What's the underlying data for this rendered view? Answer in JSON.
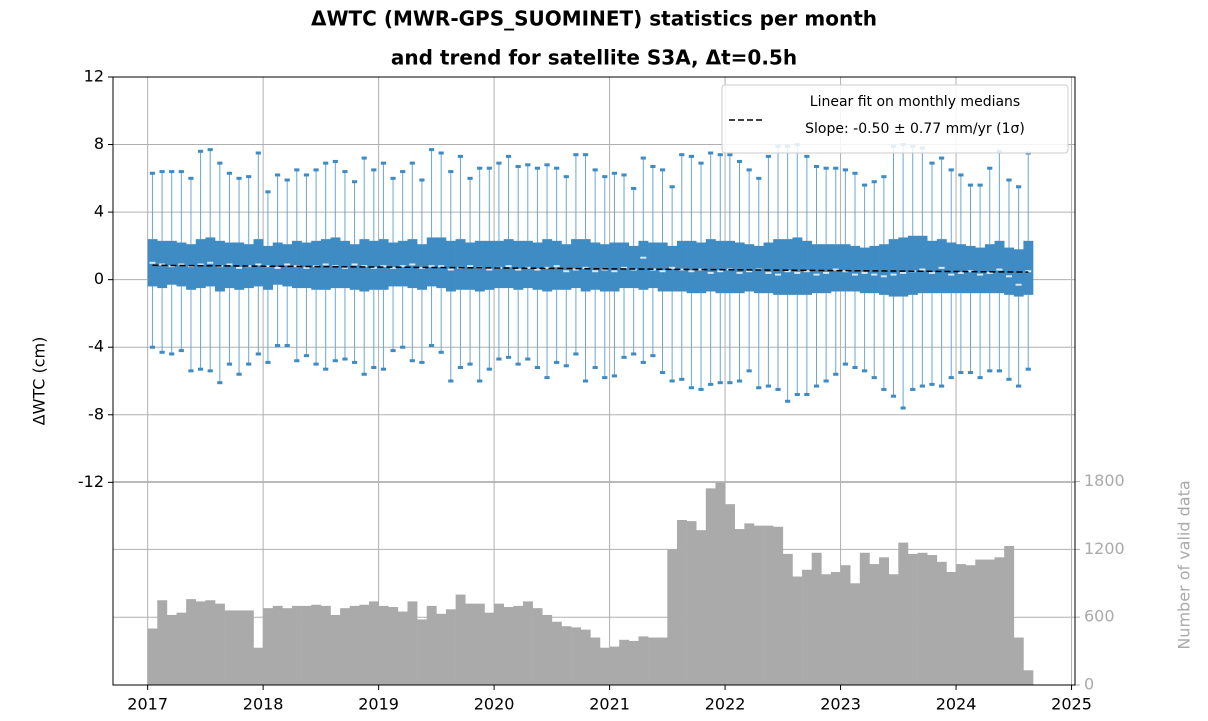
{
  "chart_data": {
    "type": "box",
    "title": [
      "ΔWTC (MWR-GPS_SUOMINET) statistics per month",
      "and trend for satellite S3A, Δt=0.5h"
    ],
    "ylabel": "ΔWTC (cm)",
    "y2label": "Number of valid data",
    "xlim": [
      2016.7,
      2025.03
    ],
    "xticks": [
      2017,
      2018,
      2019,
      2020,
      2021,
      2022,
      2023,
      2024,
      2025
    ],
    "ylim": [
      -24,
      12
    ],
    "yticks": [
      -12,
      -8,
      -4,
      0,
      4,
      8,
      12
    ],
    "y2lim": [
      0,
      5380
    ],
    "y2ticks": [
      0,
      600,
      1200,
      1800
    ],
    "grid": true,
    "box_color": "#3f8bc3",
    "whisker_color": "#6aa6d3",
    "median_color": "#d6e8f5",
    "x": [
      "2017-01",
      "2017-02",
      "2017-03",
      "2017-04",
      "2017-05",
      "2017-06",
      "2017-07",
      "2017-08",
      "2017-09",
      "2017-10",
      "2017-11",
      "2017-12",
      "2018-01",
      "2018-02",
      "2018-03",
      "2018-04",
      "2018-05",
      "2018-06",
      "2018-07",
      "2018-08",
      "2018-09",
      "2018-10",
      "2018-11",
      "2018-12",
      "2019-01",
      "2019-02",
      "2019-03",
      "2019-04",
      "2019-05",
      "2019-06",
      "2019-07",
      "2019-08",
      "2019-09",
      "2019-10",
      "2019-11",
      "2019-12",
      "2020-01",
      "2020-02",
      "2020-03",
      "2020-04",
      "2020-05",
      "2020-06",
      "2020-07",
      "2020-08",
      "2020-09",
      "2020-10",
      "2020-11",
      "2020-12",
      "2021-01",
      "2021-02",
      "2021-03",
      "2021-04",
      "2021-05",
      "2021-06",
      "2021-07",
      "2021-08",
      "2021-09",
      "2021-10",
      "2021-11",
      "2021-12",
      "2022-01",
      "2022-02",
      "2022-03",
      "2022-04",
      "2022-05",
      "2022-06",
      "2022-07",
      "2022-08",
      "2022-09",
      "2022-10",
      "2022-11",
      "2022-12",
      "2023-01",
      "2023-02",
      "2023-03",
      "2023-04",
      "2023-05",
      "2023-06",
      "2023-07",
      "2023-08",
      "2023-09",
      "2023-10",
      "2023-11",
      "2023-12",
      "2024-01",
      "2024-02",
      "2024-03",
      "2024-04",
      "2024-05",
      "2024-06",
      "2024-07",
      "2024-08"
    ],
    "whisker_high": [
      6.3,
      6.4,
      6.4,
      6.4,
      6.0,
      7.6,
      7.7,
      6.9,
      6.3,
      6.0,
      6.1,
      7.5,
      5.2,
      6.2,
      5.9,
      6.5,
      6.2,
      6.5,
      6.9,
      7.0,
      6.4,
      5.8,
      7.2,
      6.5,
      6.9,
      6.0,
      6.4,
      6.9,
      5.9,
      7.7,
      7.5,
      6.4,
      7.3,
      6.0,
      6.6,
      6.6,
      6.9,
      7.3,
      6.7,
      6.8,
      6.6,
      6.8,
      6.6,
      6.1,
      7.4,
      7.4,
      6.5,
      6.1,
      6.3,
      6.2,
      5.4,
      7.2,
      6.7,
      6.5,
      5.5,
      7.4,
      7.3,
      6.9,
      7.5,
      7.4,
      7.4,
      7.0,
      6.5,
      6.0,
      7.3,
      7.9,
      7.9,
      8.0,
      7.3,
      6.7,
      6.6,
      6.6,
      6.5,
      6.3,
      5.6,
      5.8,
      6.1,
      7.9,
      8.0,
      7.9,
      7.8,
      6.9,
      7.2,
      6.5,
      6.2,
      5.6,
      5.6,
      6.6,
      7.6,
      5.9,
      5.5,
      7.5
    ],
    "q3": [
      2.4,
      2.3,
      2.3,
      2.2,
      2.1,
      2.4,
      2.5,
      2.3,
      2.2,
      2.2,
      2.1,
      2.4,
      2.0,
      2.2,
      2.1,
      2.3,
      2.2,
      2.3,
      2.4,
      2.5,
      2.3,
      2.1,
      2.4,
      2.3,
      2.4,
      2.2,
      2.3,
      2.4,
      2.1,
      2.5,
      2.5,
      2.3,
      2.4,
      2.2,
      2.3,
      2.3,
      2.3,
      2.4,
      2.3,
      2.3,
      2.2,
      2.4,
      2.3,
      2.1,
      2.4,
      2.4,
      2.2,
      2.1,
      2.2,
      2.2,
      2.0,
      2.3,
      2.2,
      2.2,
      2.0,
      2.3,
      2.3,
      2.2,
      2.4,
      2.3,
      2.3,
      2.2,
      2.1,
      2.0,
      2.2,
      2.4,
      2.4,
      2.5,
      2.3,
      2.1,
      2.1,
      2.1,
      2.1,
      2.0,
      1.9,
      2.0,
      2.1,
      2.4,
      2.5,
      2.6,
      2.6,
      2.3,
      2.4,
      2.2,
      2.1,
      2.0,
      1.9,
      2.1,
      2.3,
      1.9,
      1.8,
      2.3
    ],
    "median": [
      1.0,
      0.9,
      0.8,
      0.9,
      0.8,
      0.9,
      1.0,
      0.8,
      0.9,
      0.7,
      0.8,
      0.9,
      0.8,
      0.7,
      0.9,
      0.8,
      0.7,
      0.8,
      0.9,
      0.8,
      0.7,
      0.9,
      0.8,
      0.7,
      0.8,
      0.7,
      0.8,
      0.9,
      0.7,
      0.8,
      0.8,
      0.6,
      0.7,
      0.8,
      0.7,
      0.6,
      0.7,
      0.8,
      0.6,
      0.7,
      0.6,
      0.7,
      0.8,
      0.5,
      0.6,
      0.7,
      0.5,
      0.6,
      0.5,
      0.7,
      0.6,
      1.3,
      0.6,
      0.5,
      0.7,
      0.6,
      0.5,
      0.6,
      0.4,
      0.5,
      0.6,
      0.4,
      0.5,
      0.6,
      0.4,
      0.3,
      0.5,
      0.4,
      0.5,
      0.3,
      0.4,
      0.6,
      0.5,
      0.3,
      0.4,
      0.3,
      0.2,
      0.3,
      0.4,
      0.5,
      0.6,
      0.4,
      0.7,
      0.3,
      0.4,
      0.5,
      0.3,
      0.4,
      0.6,
      0.2,
      -0.3,
      0.5
    ],
    "q1": [
      -0.4,
      -0.5,
      -0.3,
      -0.4,
      -0.6,
      -0.5,
      -0.4,
      -0.7,
      -0.5,
      -0.6,
      -0.5,
      -0.4,
      -0.6,
      -0.3,
      -0.4,
      -0.5,
      -0.5,
      -0.6,
      -0.6,
      -0.5,
      -0.5,
      -0.6,
      -0.7,
      -0.6,
      -0.6,
      -0.4,
      -0.4,
      -0.5,
      -0.6,
      -0.4,
      -0.5,
      -0.7,
      -0.6,
      -0.6,
      -0.7,
      -0.6,
      -0.5,
      -0.5,
      -0.6,
      -0.5,
      -0.6,
      -0.7,
      -0.6,
      -0.6,
      -0.5,
      -0.7,
      -0.6,
      -0.7,
      -0.7,
      -0.5,
      -0.5,
      -0.6,
      -0.5,
      -0.7,
      -0.7,
      -0.7,
      -0.8,
      -0.8,
      -0.7,
      -0.8,
      -0.8,
      -0.8,
      -0.7,
      -0.8,
      -0.8,
      -0.9,
      -0.9,
      -0.9,
      -0.9,
      -0.8,
      -0.8,
      -0.7,
      -0.7,
      -0.7,
      -0.8,
      -0.8,
      -0.9,
      -1.0,
      -1.0,
      -0.9,
      -0.8,
      -0.8,
      -0.8,
      -0.8,
      -0.8,
      -0.8,
      -0.8,
      -0.8,
      -0.8,
      -0.9,
      -1.0,
      -0.9
    ],
    "whisker_low": [
      -4.0,
      -4.3,
      -4.4,
      -4.2,
      -5.4,
      -5.3,
      -5.4,
      -6.1,
      -5.0,
      -5.6,
      -5.0,
      -4.4,
      -4.9,
      -3.9,
      -3.9,
      -4.8,
      -4.5,
      -5.0,
      -5.3,
      -4.8,
      -4.7,
      -4.9,
      -5.6,
      -5.2,
      -5.3,
      -4.2,
      -4.0,
      -4.8,
      -4.9,
      -3.9,
      -4.3,
      -6.0,
      -5.2,
      -5.0,
      -6.0,
      -5.3,
      -4.7,
      -4.6,
      -5.0,
      -4.7,
      -5.2,
      -5.8,
      -4.9,
      -5.1,
      -4.4,
      -6.0,
      -5.2,
      -5.8,
      -5.7,
      -4.6,
      -4.4,
      -4.9,
      -4.5,
      -5.5,
      -6.0,
      -5.9,
      -6.4,
      -6.5,
      -6.2,
      -6.1,
      -6.1,
      -6.0,
      -5.4,
      -6.4,
      -6.3,
      -6.5,
      -7.2,
      -6.8,
      -6.8,
      -6.3,
      -6.0,
      -5.6,
      -5.0,
      -5.2,
      -5.4,
      -5.8,
      -6.5,
      -6.9,
      -7.6,
      -6.5,
      -6.3,
      -6.2,
      -6.3,
      -5.8,
      -5.5,
      -5.5,
      -5.8,
      -5.4,
      -5.4,
      -5.9,
      -6.3,
      -5.3
    ],
    "counts": [
      500,
      750,
      620,
      640,
      760,
      740,
      750,
      720,
      660,
      660,
      660,
      330,
      680,
      700,
      680,
      700,
      700,
      710,
      700,
      620,
      680,
      700,
      710,
      740,
      700,
      690,
      650,
      740,
      580,
      700,
      630,
      670,
      800,
      720,
      720,
      640,
      720,
      690,
      700,
      740,
      680,
      620,
      560,
      520,
      510,
      490,
      420,
      330,
      340,
      400,
      390,
      430,
      420,
      420,
      1200,
      1460,
      1450,
      1370,
      1740,
      1790,
      1600,
      1380,
      1430,
      1410,
      1410,
      1400,
      1160,
      960,
      1020,
      1170,
      980,
      1000,
      1060,
      900,
      1170,
      1070,
      1130,
      980,
      1260,
      1160,
      1170,
      1150,
      1090,
      1000,
      1070,
      1060,
      1110,
      1110,
      1130,
      1230,
      420,
      130
    ],
    "counts_color": "#aaaaaa",
    "counts_axis": "y2",
    "fit": {
      "label": [
        "Linear fit on monthly medians",
        "Slope: -0.50 ± 0.77 mm/yr (1σ)"
      ],
      "x": [
        "2017-01",
        "2024-08"
      ],
      "values": [
        0.85,
        0.45
      ],
      "color": "#000000"
    }
  }
}
